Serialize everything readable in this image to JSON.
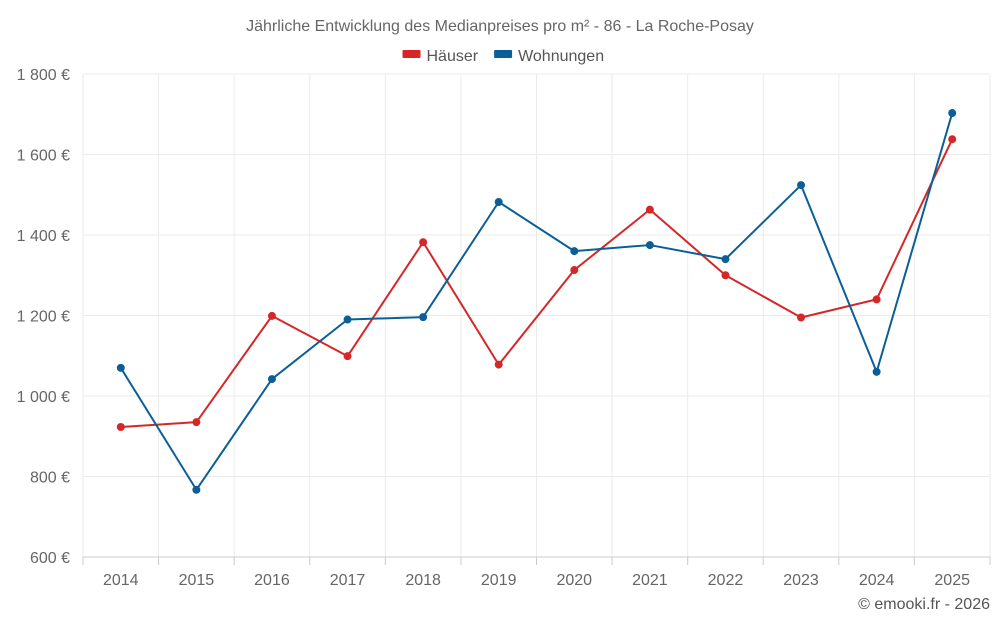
{
  "chart_data": {
    "type": "line",
    "title": "Jährliche Entwicklung des Medianpreises pro m² - 86 - La Roche-Posay",
    "categories": [
      "2014",
      "2015",
      "2016",
      "2017",
      "2018",
      "2019",
      "2020",
      "2021",
      "2022",
      "2023",
      "2024",
      "2025"
    ],
    "series": [
      {
        "name": "Häuser",
        "color": "#d62728",
        "values": [
          923,
          935,
          1199,
          1099,
          1382,
          1078,
          1313,
          1463,
          1300,
          1195,
          1240,
          1638
        ]
      },
      {
        "name": "Wohnungen",
        "color": "#0b5f96",
        "values": [
          1070,
          767,
          1042,
          1190,
          1196,
          1482,
          1360,
          1375,
          1340,
          1524,
          1060,
          1703
        ]
      }
    ],
    "ylim": [
      600,
      1800
    ],
    "yticks": [
      600,
      800,
      1000,
      1200,
      1400,
      1600,
      1800
    ],
    "ytick_labels": [
      "600 €",
      "800 €",
      "1 000 €",
      "1 200 €",
      "1 400 €",
      "1 600 €",
      "1 800 €"
    ],
    "grid": true,
    "legend_position": "top-center",
    "xlabel": "",
    "ylabel": ""
  },
  "credit": "© emooki.fr - 2026"
}
